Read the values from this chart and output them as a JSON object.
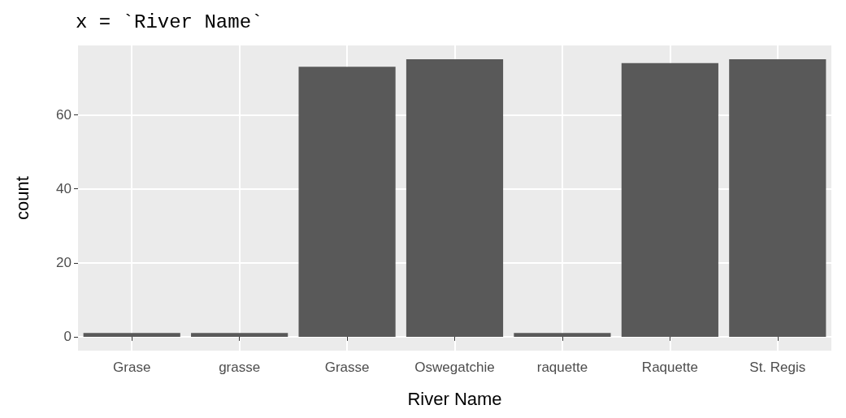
{
  "chart_data": {
    "type": "bar",
    "title": "x = `River Name`",
    "xlabel": "River Name",
    "ylabel": "count",
    "categories": [
      "Grase",
      "grasse",
      "Grasse",
      "Oswegatchie",
      "raquette",
      "Raquette",
      "St. Regis"
    ],
    "values": [
      1,
      1,
      73,
      75,
      1,
      74,
      75
    ],
    "color": "#595959",
    "ylim": [
      -3.75,
      78.75
    ],
    "yticks": [
      0,
      20,
      40,
      60
    ],
    "grid": true
  }
}
